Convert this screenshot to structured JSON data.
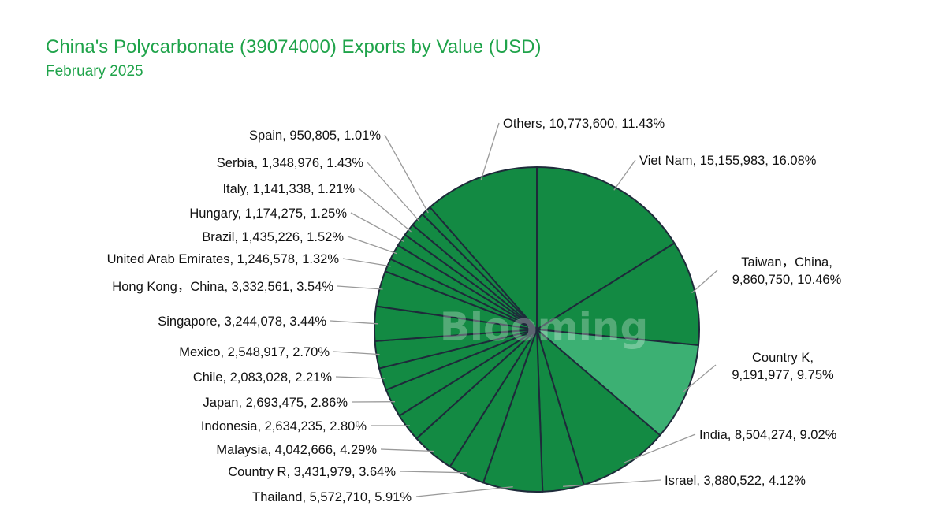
{
  "title": "China's Polycarbonate (39074000) Exports by Value (USD)",
  "subtitle": "February 2025",
  "watermark": "Blooming",
  "colors": {
    "slice": "#138a43",
    "highlight": "#3cb073",
    "slice_border": "#1e2a3a",
    "leader": "#9a9a9a",
    "title": "#1fa34a"
  },
  "chart_data": {
    "type": "pie",
    "title": "China's Polycarbonate (39074000) Exports by Value (USD)",
    "subtitle": "February 2025",
    "start": "12 o'clock",
    "direction": "clockwise",
    "highlighted": "Country K",
    "slices": [
      {
        "label": "Viet Nam",
        "value": 15155983,
        "percent": 16.08,
        "text": "Viet Nam, 15,155,983, 16.08%"
      },
      {
        "label": "Taiwan，China",
        "value": 9860750,
        "percent": 10.46,
        "line1": "Taiwan，China,",
        "line2": "9,860,750, 10.46%"
      },
      {
        "label": "Country K",
        "value": 9191977,
        "percent": 9.75,
        "line1": "Country K,",
        "line2": "9,191,977, 9.75%"
      },
      {
        "label": "India",
        "value": 8504274,
        "percent": 9.02,
        "text": "India, 8,504,274, 9.02%"
      },
      {
        "label": "Israel",
        "value": 3880522,
        "percent": 4.12,
        "text": "Israel, 3,880,522, 4.12%"
      },
      {
        "label": "Thailand",
        "value": 5572710,
        "percent": 5.91,
        "text": "Thailand, 5,572,710, 5.91%"
      },
      {
        "label": "Country R",
        "value": 3431979,
        "percent": 3.64,
        "text": "Country R, 3,431,979, 3.64%"
      },
      {
        "label": "Malaysia",
        "value": 4042666,
        "percent": 4.29,
        "text": "Malaysia, 4,042,666, 4.29%"
      },
      {
        "label": "Indonesia",
        "value": 2634235,
        "percent": 2.8,
        "text": "Indonesia, 2,634,235, 2.80%"
      },
      {
        "label": "Japan",
        "value": 2693475,
        "percent": 2.86,
        "text": "Japan, 2,693,475, 2.86%"
      },
      {
        "label": "Chile",
        "value": 2083028,
        "percent": 2.21,
        "text": "Chile, 2,083,028, 2.21%"
      },
      {
        "label": "Mexico",
        "value": 2548917,
        "percent": 2.7,
        "text": "Mexico, 2,548,917, 2.70%"
      },
      {
        "label": "Singapore",
        "value": 3244078,
        "percent": 3.44,
        "text": "Singapore, 3,244,078, 3.44%"
      },
      {
        "label": "Hong Kong，China",
        "value": 3332561,
        "percent": 3.54,
        "text": "Hong Kong，China, 3,332,561, 3.54%"
      },
      {
        "label": "United Arab Emirates",
        "value": 1246578,
        "percent": 1.32,
        "text": "United Arab Emirates, 1,246,578, 1.32%"
      },
      {
        "label": "Brazil",
        "value": 1435226,
        "percent": 1.52,
        "text": "Brazil, 1,435,226, 1.52%"
      },
      {
        "label": "Hungary",
        "value": 1174275,
        "percent": 1.25,
        "text": "Hungary, 1,174,275, 1.25%"
      },
      {
        "label": "Italy",
        "value": 1141338,
        "percent": 1.21,
        "text": "Italy, 1,141,338, 1.21%"
      },
      {
        "label": "Serbia",
        "value": 1348976,
        "percent": 1.43,
        "text": "Serbia, 1,348,976, 1.43%"
      },
      {
        "label": "Spain",
        "value": 950805,
        "percent": 1.01,
        "text": "Spain, 950,805, 1.01%"
      },
      {
        "label": "Others",
        "value": 10773600,
        "percent": 11.43,
        "text": "Others, 10,773,600, 11.43%"
      }
    ]
  }
}
